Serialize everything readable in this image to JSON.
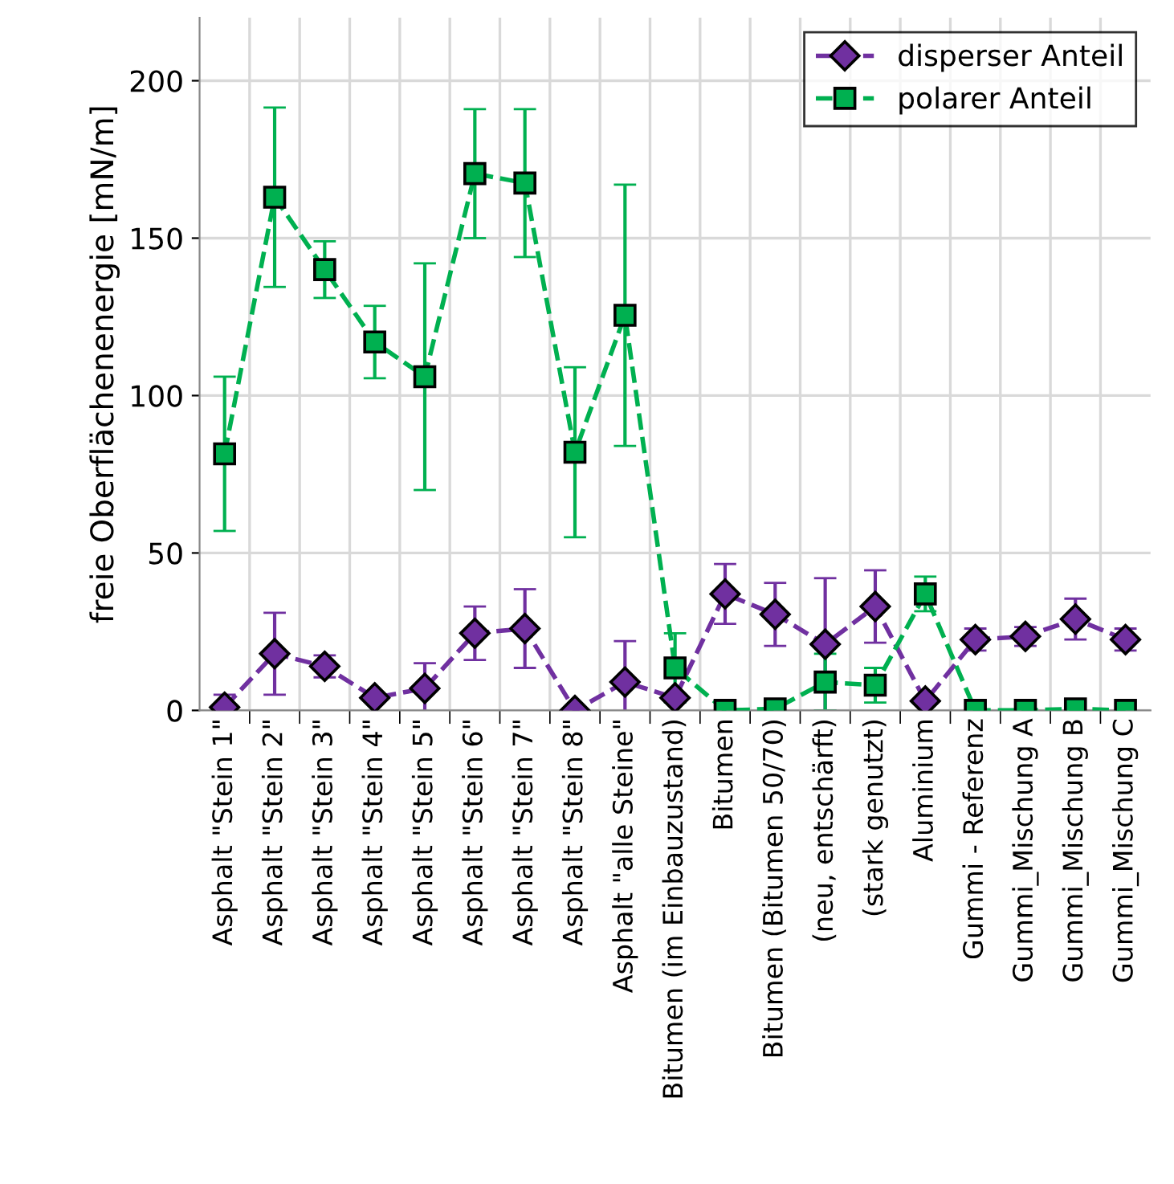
{
  "chart_data": {
    "type": "line",
    "ylabel": "freie Oberflächenenergie [mN/m]",
    "categories": [
      "Asphalt \"Stein 1\"",
      "Asphalt \"Stein 2\"",
      "Asphalt \"Stein 3\"",
      "Asphalt \"Stein 4\"",
      "Asphalt \"Stein 5\"",
      "Asphalt \"Stein 6\"",
      "Asphalt \"Stein 7\"",
      "Asphalt \"Stein 8\"",
      "Asphalt \"alle Steine\"",
      "Bitumen (im Einbauzustand)",
      "Bitumen",
      "Bitumen (Bitumen 50/70)",
      "(neu, entschärft)",
      "(stark genutzt)",
      "Aluminium",
      "Gummi - Referenz",
      "Gummi_Mischung A",
      "Gummi_Mischung B",
      "Gummi_Mischung C"
    ],
    "series": [
      {
        "name": "disperser Anteil",
        "color": "#7030a0",
        "marker": "diamond",
        "values": [
          1,
          18,
          14,
          4,
          7,
          24.5,
          26,
          0,
          9,
          4,
          37,
          30.5,
          21,
          33,
          3,
          22.5,
          23.5,
          29,
          22.5
        ],
        "errors": [
          4,
          13,
          3.5,
          null,
          8,
          8.5,
          12.5,
          null,
          13,
          null,
          9.5,
          10,
          21,
          11.5,
          null,
          3.5,
          3,
          6.5,
          3.5
        ]
      },
      {
        "name": "polarer Anteil",
        "color": "#00b050",
        "marker": "square",
        "values": [
          81.5,
          163,
          140,
          117,
          106,
          170.5,
          167.5,
          82,
          125.5,
          13.5,
          0,
          0.5,
          9,
          8,
          37,
          0,
          0,
          0.5,
          0
        ],
        "errors": [
          24.5,
          28.5,
          9,
          11.5,
          36,
          20.5,
          23.5,
          27,
          41.5,
          11,
          null,
          null,
          9,
          5.5,
          5.5,
          null,
          null,
          null,
          null
        ]
      }
    ],
    "ylim": [
      0,
      220
    ],
    "yticks": [
      0,
      50,
      100,
      150,
      200
    ],
    "grid": true,
    "legend": "top right",
    "line_style": "dashed"
  }
}
